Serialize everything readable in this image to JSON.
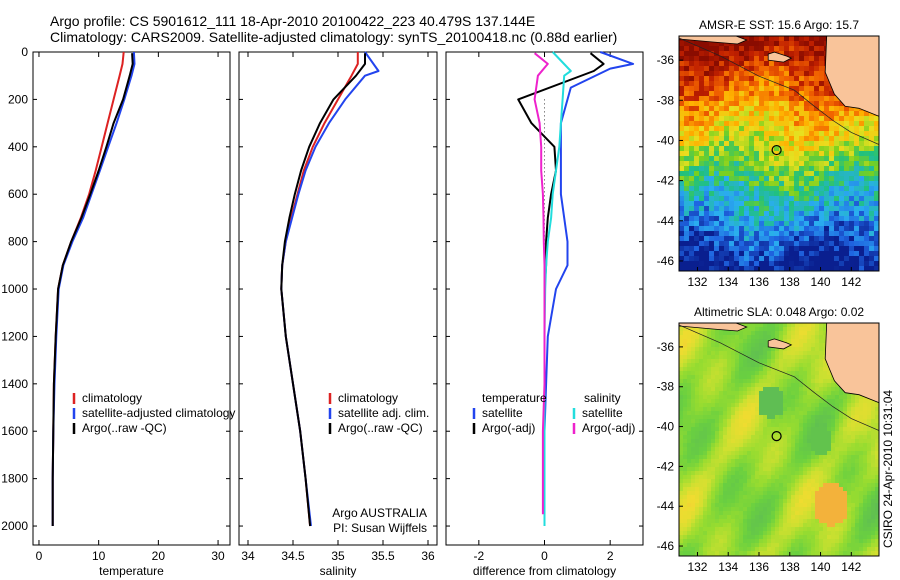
{
  "header": {
    "line1": "Argo profile: CS 5901612_111 18-Apr-2010 20100422_223 40.479S 137.144E",
    "line2": "Climatology: CARS2009. Satellite-adjusted climatology: synTS_20100418.nc (0.88d earlier)"
  },
  "chart_data": [
    {
      "type": "line",
      "xlabel": "temperature",
      "xlim": [
        -1,
        32
      ],
      "ylim": [
        2080,
        0
      ],
      "y_reversed": true,
      "xticks": [
        0,
        10,
        20,
        30
      ],
      "yticks": [
        0,
        200,
        400,
        600,
        800,
        1000,
        1200,
        1400,
        1600,
        1800,
        2000
      ],
      "legend": {
        "placement": "lower-right",
        "entries": [
          "climatology",
          "satellite-adjusted climatology",
          "Argo(..raw -QC)"
        ]
      },
      "series": [
        {
          "name": "climatology",
          "color": "#dd2222",
          "x": [
            14.2,
            14.0,
            13.5,
            12.5,
            11.5,
            10.5,
            9.5,
            8.4,
            7.0,
            5.4,
            4.0,
            3.2,
            2.8,
            2.5,
            2.4,
            2.3,
            2.3
          ],
          "y": [
            0,
            50,
            100,
            200,
            300,
            400,
            500,
            600,
            700,
            800,
            900,
            1000,
            1200,
            1400,
            1600,
            1800,
            2000
          ]
        },
        {
          "name": "satellite-adjusted climatology",
          "color": "#2244ee",
          "x": [
            15.9,
            16.0,
            15.5,
            14.3,
            13.0,
            11.6,
            10.2,
            8.8,
            7.4,
            5.6,
            4.1,
            3.3,
            2.9,
            2.6,
            2.4,
            2.3,
            2.3
          ],
          "y": [
            0,
            50,
            100,
            200,
            300,
            400,
            500,
            600,
            700,
            800,
            900,
            1000,
            1200,
            1400,
            1600,
            1800,
            2000
          ]
        },
        {
          "name": "Argo(..raw -QC)",
          "color": "#000000",
          "x": [
            15.6,
            15.7,
            15.2,
            14.1,
            12.5,
            11.3,
            10.0,
            8.6,
            7.1,
            5.4,
            4.0,
            3.2,
            2.8,
            2.5,
            2.4,
            2.3,
            2.3
          ],
          "y": [
            5,
            50,
            100,
            200,
            300,
            400,
            500,
            600,
            700,
            800,
            900,
            1000,
            1200,
            1400,
            1600,
            1800,
            2000
          ]
        }
      ]
    },
    {
      "type": "line",
      "xlabel": "salinity",
      "xlim": [
        33.9,
        36.1
      ],
      "ylim": [
        2080,
        0
      ],
      "y_reversed": true,
      "xticks": [
        34,
        34.5,
        35,
        35.5,
        36
      ],
      "legend": {
        "placement": "lower-right",
        "entries": [
          "climatology",
          "satellite adj. clim.",
          "Argo(..raw -QC)"
        ]
      },
      "annotations": [
        "Argo AUSTRALIA",
        "PI: Susan Wijffels"
      ],
      "series": [
        {
          "name": "climatology",
          "color": "#dd2222",
          "x": [
            35.22,
            35.22,
            35.15,
            35.0,
            34.85,
            34.72,
            34.62,
            34.55,
            34.48,
            34.42,
            34.38,
            34.37,
            34.42,
            34.5,
            34.58,
            34.64,
            34.69
          ],
          "y": [
            0,
            50,
            100,
            200,
            300,
            400,
            500,
            600,
            700,
            800,
            900,
            1000,
            1200,
            1400,
            1600,
            1800,
            2000
          ]
        },
        {
          "name": "satellite adj. clim.",
          "color": "#2244ee",
          "x": [
            35.3,
            35.45,
            35.3,
            35.08,
            34.9,
            34.75,
            34.64,
            34.56,
            34.49,
            34.42,
            34.38,
            34.37,
            34.42,
            34.5,
            34.58,
            34.64,
            34.7
          ],
          "y": [
            0,
            80,
            100,
            200,
            300,
            400,
            500,
            600,
            700,
            800,
            900,
            1000,
            1200,
            1400,
            1600,
            1800,
            2000
          ]
        },
        {
          "name": "Argo(..raw -QC)",
          "color": "#000000",
          "x": [
            35.3,
            35.3,
            35.2,
            34.95,
            34.8,
            34.68,
            34.59,
            34.52,
            34.46,
            34.41,
            34.38,
            34.37,
            34.42,
            34.5,
            34.58,
            34.64,
            34.69
          ],
          "y": [
            5,
            50,
            100,
            200,
            300,
            400,
            500,
            600,
            700,
            800,
            900,
            1000,
            1200,
            1400,
            1600,
            1800,
            2000
          ]
        }
      ]
    },
    {
      "type": "line",
      "xlabel": "difference from climatology",
      "xlim": [
        -3,
        3
      ],
      "ylim": [
        2080,
        0
      ],
      "y_reversed": true,
      "xticks": [
        -2,
        0,
        2
      ],
      "legend": {
        "placement": "lower-center",
        "groups": [
          {
            "title": "temperature",
            "entries": [
              "satellite",
              "Argo(-adj)"
            ]
          },
          {
            "title": "salinity",
            "entries": [
              "satellite",
              "Argo(-adj)"
            ]
          }
        ]
      },
      "series": [
        {
          "name": "temperature satellite",
          "color": "#2244ee",
          "x": [
            1.7,
            2.7,
            2.0,
            0.8,
            0.5,
            0.5,
            0.5,
            0.5,
            0.6,
            0.7,
            0.7,
            0.35,
            0.1,
            0.05,
            0.0,
            0.0,
            0.0
          ],
          "y": [
            0,
            50,
            70,
            150,
            300,
            400,
            500,
            600,
            700,
            800,
            900,
            1000,
            1200,
            1400,
            1600,
            1800,
            2000
          ]
        },
        {
          "name": "temperature Argo(-adj)",
          "color": "#000000",
          "x": [
            1.4,
            1.8,
            1.5,
            -0.8,
            -0.4,
            0.3,
            0.35,
            0.2,
            0.1,
            0.05,
            0.05,
            0.0,
            0.0,
            0.0,
            0.0,
            0.0,
            0.0
          ],
          "y": [
            5,
            50,
            80,
            200,
            300,
            400,
            500,
            600,
            700,
            800,
            900,
            1000,
            1200,
            1400,
            1600,
            1800,
            2000
          ]
        },
        {
          "name": "salinity satellite",
          "color": "#22dddd",
          "x": [
            0.25,
            0.8,
            0.6,
            0.55,
            0.5,
            0.45,
            0.35,
            0.25,
            0.2,
            0.1,
            0.05,
            0.02,
            0.0,
            0.0,
            0.0,
            0.0,
            0.0
          ],
          "y": [
            0,
            80,
            100,
            200,
            300,
            400,
            500,
            600,
            700,
            800,
            900,
            1000,
            1200,
            1400,
            1600,
            1800,
            2000
          ]
        },
        {
          "name": "salinity Argo(-adj)",
          "color": "#ee22cc",
          "x": [
            -0.3,
            0.1,
            -0.2,
            -0.3,
            -0.15,
            -0.1,
            -0.1,
            -0.05,
            -0.03,
            -0.02,
            0.0,
            0.0,
            0.0,
            0.0,
            -0.05,
            -0.05,
            -0.05
          ],
          "y": [
            5,
            50,
            100,
            200,
            300,
            400,
            500,
            600,
            700,
            800,
            900,
            1000,
            1200,
            1400,
            1600,
            1800,
            1950
          ]
        }
      ]
    },
    {
      "type": "heatmap",
      "title": "AMSR-E SST: 15.6 Argo: 15.7",
      "xlim": [
        130.8,
        143.8
      ],
      "ylim": [
        -46.5,
        -34.8
      ],
      "xticks": [
        132,
        134,
        136,
        138,
        140,
        142
      ],
      "yticks": [
        -36,
        -38,
        -40,
        -42,
        -44,
        -46
      ],
      "marker": {
        "lon": 137.144,
        "lat": -40.479
      },
      "colorscale": [
        "#0a1f8f",
        "#1f64e0",
        "#2aaef0",
        "#20c080",
        "#7ad020",
        "#e8e020",
        "#ffb000",
        "#f06000",
        "#c02000",
        "#8a0c00"
      ],
      "land_color": "#f9c49a"
    },
    {
      "type": "heatmap",
      "title": "Altimetric SLA: 0.048 Argo: 0.02",
      "xlim": [
        130.8,
        143.8
      ],
      "ylim": [
        -46.5,
        -34.8
      ],
      "xticks": [
        132,
        134,
        136,
        138,
        140,
        142
      ],
      "yticks": [
        -36,
        -38,
        -40,
        -42,
        -44,
        -46
      ],
      "marker": {
        "lon": 137.144,
        "lat": -40.479
      },
      "colorscale": [
        "#5aaa70",
        "#60c050",
        "#6ad040",
        "#98dc30",
        "#cce030",
        "#f0dc30",
        "#f4a040"
      ],
      "land_color": "#f9c49a"
    }
  ],
  "footer": {
    "stamp": "CSIRO 24-Apr-2010 10:31:04"
  }
}
